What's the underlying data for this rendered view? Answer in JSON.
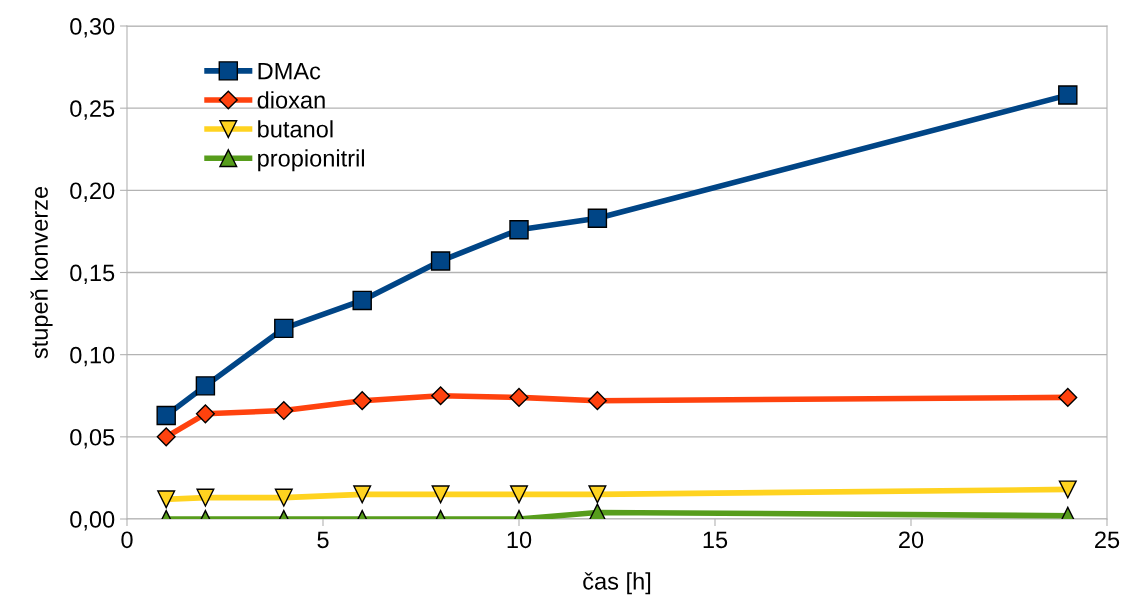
{
  "chart_data": {
    "type": "line",
    "xlabel": "čas [h]",
    "ylabel": "stupeň konverze",
    "x": [
      1,
      2,
      4,
      6,
      8,
      10,
      12,
      24
    ],
    "series": [
      {
        "name": "DMAc",
        "color": "#004586",
        "marker": "square",
        "values": [
          0.063,
          0.081,
          0.116,
          0.133,
          0.157,
          0.176,
          0.183,
          0.258
        ]
      },
      {
        "name": "dioxan",
        "color": "#ff420e",
        "marker": "diamond",
        "values": [
          0.05,
          0.064,
          0.066,
          0.072,
          0.075,
          0.074,
          0.072,
          0.074
        ]
      },
      {
        "name": "butanol",
        "color": "#ffd320",
        "marker": "triangle_down",
        "values": [
          0.012,
          0.013,
          0.013,
          0.015,
          0.015,
          0.015,
          0.015,
          0.018
        ]
      },
      {
        "name": "propionitril",
        "color": "#579d1c",
        "marker": "triangle",
        "values": [
          0.0,
          0.0,
          0.0,
          0.0,
          0.0,
          0.0,
          0.004,
          0.002
        ]
      }
    ],
    "xlim": [
      0,
      25
    ],
    "xticks": [
      0,
      5,
      10,
      15,
      20,
      25
    ],
    "ylim": [
      0,
      0.3
    ],
    "yticks": [
      {
        "value": 0,
        "label": "0,00"
      },
      {
        "value": 0.05,
        "label": "0,05"
      },
      {
        "value": 0.1,
        "label": "0,10"
      },
      {
        "value": 0.15,
        "label": "0,15"
      },
      {
        "value": 0.2,
        "label": "0,20"
      },
      {
        "value": 0.25,
        "label": "0,25"
      },
      {
        "value": 0.3,
        "label": "0,30"
      }
    ],
    "grid": "y",
    "legend": "top left",
    "line_style": "solid"
  }
}
